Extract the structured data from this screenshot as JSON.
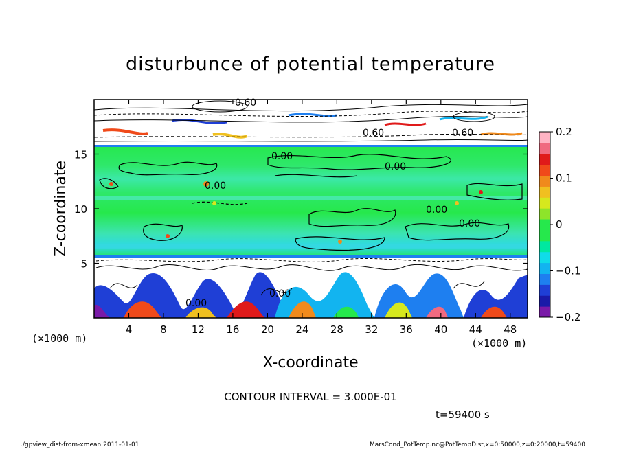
{
  "chart_data": {
    "type": "heatmap",
    "title": "disturbunce of potential temperature",
    "xlabel": "X-coordinate",
    "ylabel": "Z-coordinate",
    "x_unit": "(×1000 m)",
    "z_unit": "(×1000 m)",
    "xlim": [
      0,
      50
    ],
    "ylim": [
      0,
      20
    ],
    "x_ticks": [
      4,
      8,
      12,
      16,
      20,
      24,
      28,
      32,
      36,
      40,
      44,
      48
    ],
    "y_ticks": [
      5,
      10,
      15
    ],
    "colorbar": {
      "range": [
        -0.2,
        0.2
      ],
      "tick_values": [
        0.2,
        0.1,
        0,
        -0.1,
        -0.2
      ],
      "tick_labels": [
        "0.2",
        "0.1",
        "0",
        "−0.1",
        "−0.2"
      ],
      "colors": [
        "#7a1aa8",
        "#1a1aa8",
        "#1f3fd6",
        "#1e7ff0",
        "#12b4f0",
        "#10dce8",
        "#00e8a0",
        "#26e84c",
        "#26e84c",
        "#8ee42a",
        "#d6e81e",
        "#f0c020",
        "#f08a1c",
        "#f04a1a",
        "#e01a1a",
        "#f06a80",
        "#ffb4c4"
      ]
    },
    "contour_labels": [
      "0.60",
      "0.60",
      "0.60",
      "0.00",
      "0.00",
      "0.00",
      "0.00",
      "0.00",
      "0.00",
      "0.00"
    ],
    "contour_interval_text": "CONTOUR INTERVAL = 3.000E-01",
    "time_text": "t=59400 s"
  },
  "footer": {
    "left": "./gpview_dist-from-xmean  2011-01-01",
    "right": "MarsCond_PotTemp.nc@PotTempDist,x=0:50000,z=0:20000,t=59400"
  }
}
